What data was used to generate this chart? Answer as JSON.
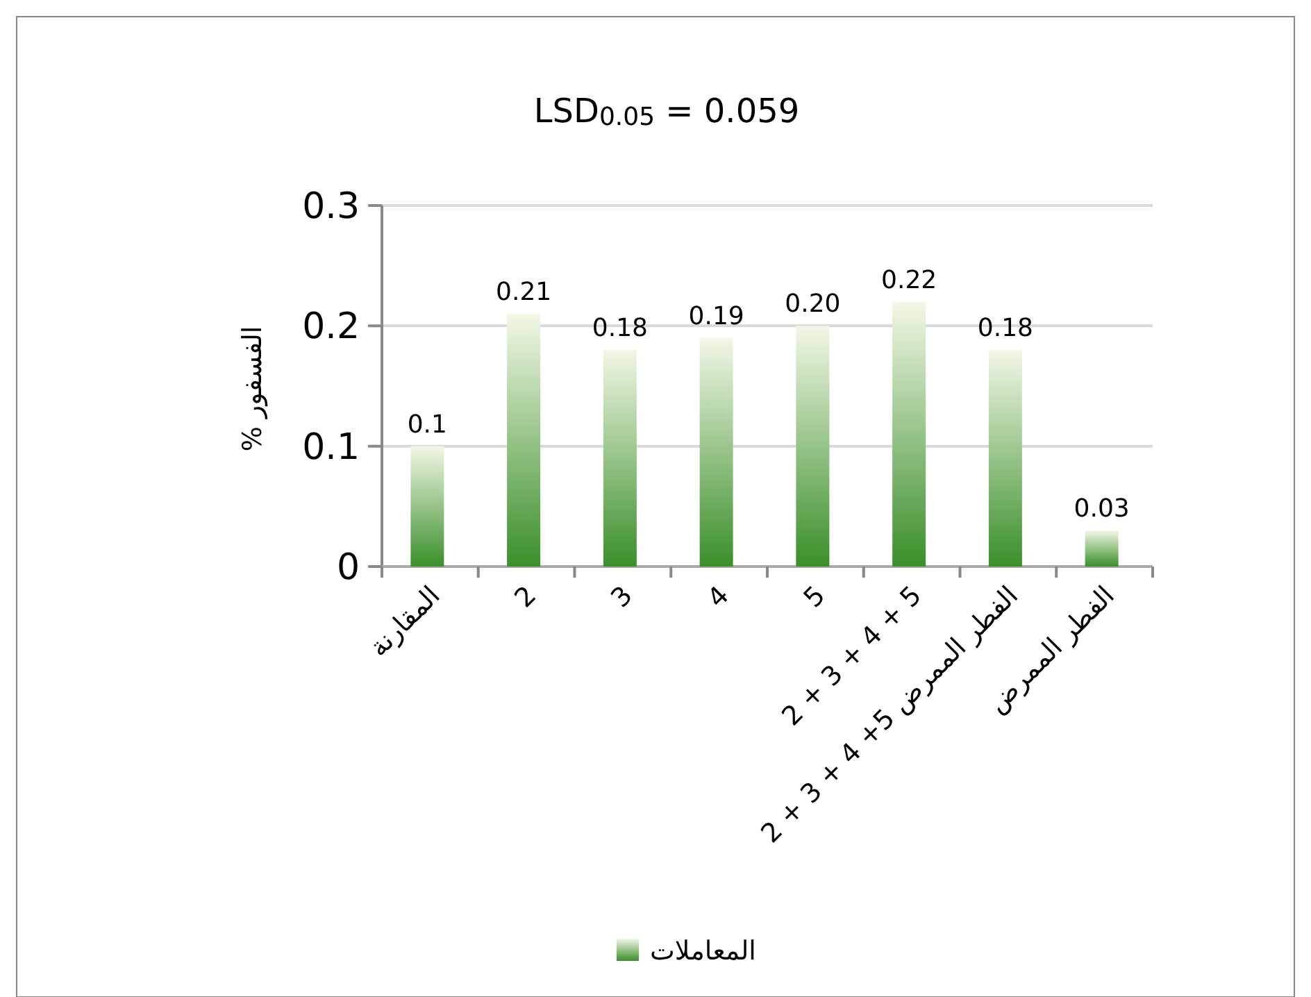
{
  "chart_data": {
    "type": "bar",
    "title": "LSD$_{0.05}$ = 0.059",
    "ylabel": "% الفسفور",
    "categories": [
      "المقارنة",
      "2",
      "3",
      "4",
      "5",
      "2 + 3 + 4 + 5",
      "الفطر الممرض 5+ 4 + 3 + 2",
      "الفطر الممرض"
    ],
    "series": [
      {
        "name": "المعاملات",
        "color": "#3a8f2a",
        "values": [
          0.1,
          0.21,
          0.18,
          0.19,
          0.2,
          0.22,
          0.18,
          0.03
        ],
        "value_labels": [
          "0.1",
          "0.21",
          "0.18",
          "0.19",
          "0.20",
          "0.22",
          "0.18",
          "0.03"
        ]
      }
    ],
    "ylim": [
      0,
      0.3
    ],
    "yticks": [
      0,
      0.1,
      0.2,
      0.3
    ],
    "grid": "y",
    "legend": "bottom"
  }
}
